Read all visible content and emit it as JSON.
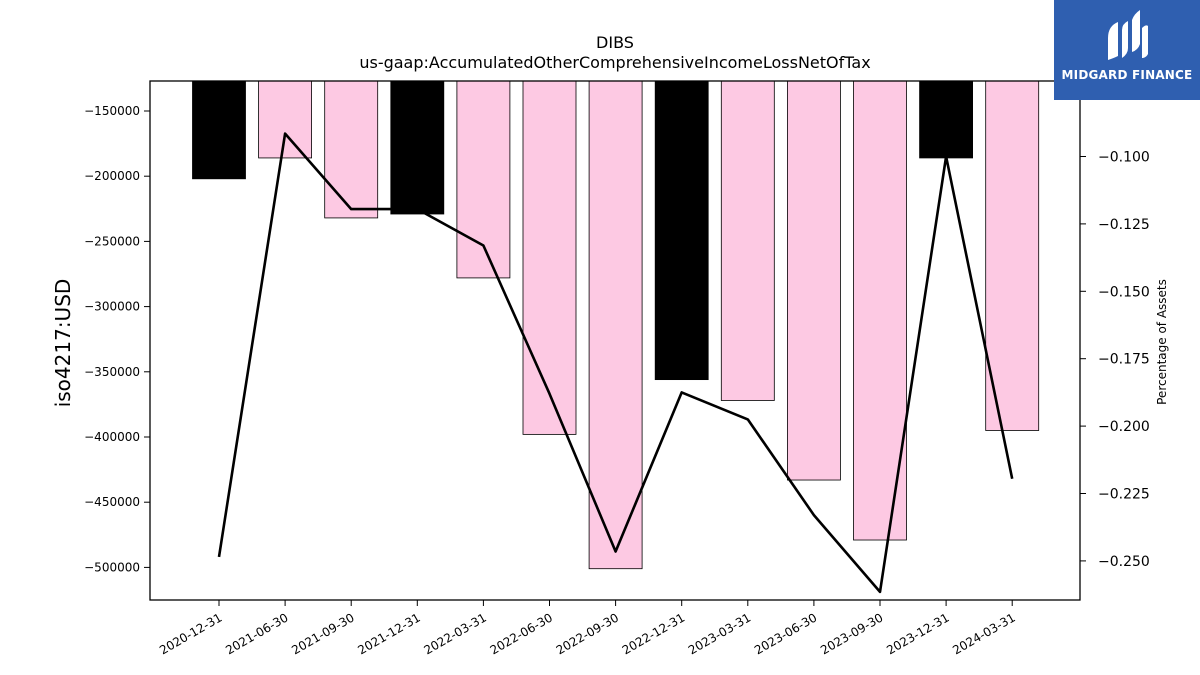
{
  "brand": {
    "name": "MIDGARD FINANCE",
    "bg_color": "#2f5fb0"
  },
  "chart_data": {
    "type": "bar",
    "title": "DIBS",
    "subtitle": "us-gaap:AccumulatedOtherComprehensiveIncomeLossNetOfTax",
    "ylabel": "iso4217:USD",
    "y2label": "Percentage of Assets",
    "categories": [
      "2020-12-31",
      "2021-06-30",
      "2021-09-30",
      "2021-12-31",
      "2022-03-31",
      "2022-06-30",
      "2022-09-30",
      "2022-12-31",
      "2023-03-31",
      "2023-06-30",
      "2023-09-30",
      "2023-12-31",
      "2024-03-31"
    ],
    "bar_series": {
      "values": [
        -202000,
        -186000,
        -232000,
        -229000,
        -278000,
        -398000,
        -501000,
        -356000,
        -372000,
        -433000,
        -479000,
        -186000,
        -395000
      ],
      "colors": [
        "#000000",
        "#fdc9e3",
        "#fdc9e3",
        "#000000",
        "#fdc9e3",
        "#fdc9e3",
        "#fdc9e3",
        "#000000",
        "#fdc9e3",
        "#fdc9e3",
        "#fdc9e3",
        "#000000",
        "#fdc9e3"
      ]
    },
    "line_series": {
      "values": [
        -0.2485,
        -0.0915,
        -0.1195,
        -0.1195,
        -0.133,
        -0.188,
        -0.2465,
        -0.1875,
        -0.1975,
        -0.233,
        -0.2615,
        -0.1,
        -0.2195
      ],
      "color": "#000000"
    },
    "ylim": [
      -525000,
      -127000
    ],
    "y2lim": [
      -0.2645,
      -0.072
    ],
    "yticks": [
      -150000,
      -200000,
      -250000,
      -300000,
      -350000,
      -400000,
      -450000,
      -500000
    ],
    "ytick_labels": [
      "−150000",
      "−200000",
      "−250000",
      "−300000",
      "−350000",
      "−400000",
      "−450000",
      "−500000"
    ],
    "y2ticks": [
      -0.1,
      -0.125,
      -0.15,
      -0.175,
      -0.2,
      -0.225,
      -0.25
    ],
    "y2tick_labels": [
      "−0.100",
      "−0.125",
      "−0.150",
      "−0.175",
      "−0.200",
      "−0.225",
      "−0.250"
    ],
    "grid": false,
    "legend": "none"
  }
}
